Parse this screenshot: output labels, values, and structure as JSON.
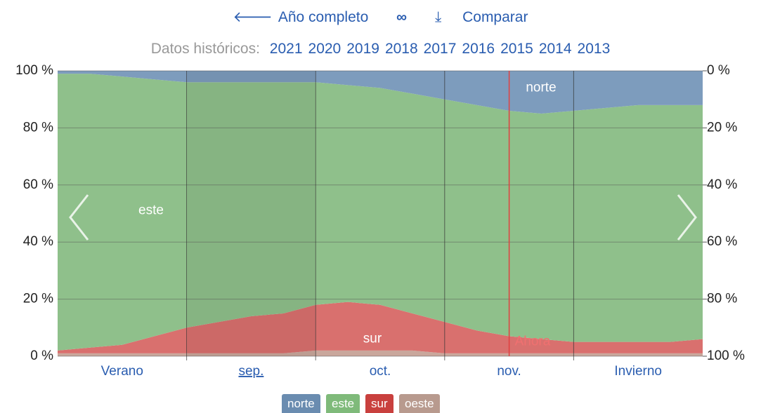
{
  "header": {
    "back_link": "Año completo",
    "compare_link": "Comparar",
    "history_label": "Datos históricos:",
    "years": [
      "2021",
      "2020",
      "2019",
      "2018",
      "2017",
      "2016",
      "2015",
      "2014",
      "2013"
    ]
  },
  "chart_data": {
    "type": "stacked_area",
    "categories": [
      null,
      null,
      "Verano",
      null,
      null,
      null,
      "sep.",
      null,
      null,
      null,
      "oct.",
      null,
      null,
      null,
      "nov.",
      null,
      null,
      null,
      "Invierno",
      null,
      null
    ],
    "series": [
      {
        "name": "oeste",
        "color": "#c9a79c",
        "values": [
          1,
          1,
          1,
          1,
          1,
          1,
          1,
          1,
          2,
          2,
          2,
          2,
          1,
          1,
          1,
          1,
          1,
          1,
          1,
          1,
          1
        ]
      },
      {
        "name": "sur",
        "color": "#d9706e",
        "values": [
          1,
          2,
          3,
          6,
          9,
          11,
          13,
          14,
          16,
          17,
          16,
          13,
          11,
          8,
          6,
          5,
          4,
          4,
          4,
          4,
          5
        ]
      },
      {
        "name": "este",
        "color": "#8fc08b",
        "values": [
          97,
          96,
          94,
          90,
          86,
          84,
          82,
          81,
          78,
          76,
          76,
          77,
          78,
          79,
          79,
          79,
          81,
          82,
          83,
          83,
          82
        ]
      },
      {
        "name": "norte",
        "color": "#7d9cbd",
        "values": [
          1,
          1,
          2,
          3,
          4,
          4,
          4,
          4,
          4,
          5,
          6,
          8,
          10,
          12,
          14,
          15,
          14,
          13,
          12,
          12,
          12
        ]
      }
    ],
    "ylim": [
      0,
      100
    ],
    "yticks": [
      {
        "value": 0,
        "label": "0 %"
      },
      {
        "value": 20,
        "label": "20 %"
      },
      {
        "value": 40,
        "label": "40 %"
      },
      {
        "value": 60,
        "label": "60 %"
      },
      {
        "value": 80,
        "label": "80 %"
      },
      {
        "value": 100,
        "label": "100 %"
      }
    ],
    "y2lim": [
      100,
      0
    ],
    "y2ticks": [
      {
        "value": 0,
        "label": "0 %"
      },
      {
        "value": 20,
        "label": "20 %"
      },
      {
        "value": 40,
        "label": "40 %"
      },
      {
        "value": 60,
        "label": "60 %"
      },
      {
        "value": 80,
        "label": "80 %"
      },
      {
        "value": 100,
        "label": "100 %"
      }
    ],
    "grid": true,
    "annotation": "Ahora",
    "legend_colors": [
      "#6a8cb0",
      "#7fba7a",
      "#c9403e",
      "#b89a8e"
    ]
  }
}
